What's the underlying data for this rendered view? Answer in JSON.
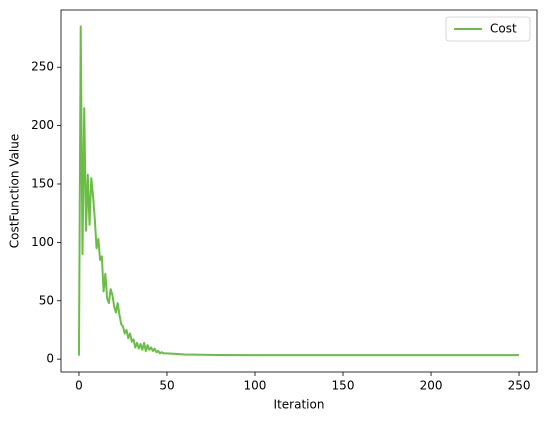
{
  "chart_data": {
    "type": "line",
    "x_label": "Iteration",
    "y_label": "CostFunction Value",
    "x": [
      0,
      1,
      2,
      3,
      4,
      5,
      6,
      7,
      8,
      9,
      10,
      11,
      12,
      13,
      14,
      15,
      16,
      17,
      18,
      19,
      20,
      21,
      22,
      23,
      24,
      25,
      26,
      27,
      28,
      29,
      30,
      31,
      32,
      33,
      34,
      35,
      36,
      37,
      38,
      39,
      40,
      41,
      42,
      43,
      44,
      45,
      46,
      47,
      48,
      50,
      55,
      60,
      70,
      80,
      100,
      150,
      200,
      250
    ],
    "series": [
      {
        "name": "Cost",
        "color": "#6abd45",
        "values": [
          3,
          285,
          90,
          215,
          110,
          158,
          115,
          155,
          140,
          120,
          95,
          103,
          85,
          88,
          58,
          73,
          52,
          48,
          60,
          55,
          45,
          40,
          48,
          38,
          30,
          28,
          22,
          25,
          18,
          22,
          15,
          17,
          10,
          14,
          9,
          13,
          8,
          14,
          7,
          12,
          8,
          10,
          7,
          9,
          6,
          7,
          5,
          6,
          5,
          5,
          4.5,
          4,
          3.8,
          3.6,
          3.5,
          3.5,
          3.5,
          3.5
        ]
      }
    ],
    "xlim": [
      -10.2,
      260.2
    ],
    "ylim": [
      -11,
      299
    ],
    "xticks": [
      0,
      50,
      100,
      150,
      200,
      250
    ],
    "yticks": [
      0,
      50,
      100,
      150,
      200,
      250
    ],
    "grid": false,
    "legend": "upper-right"
  }
}
